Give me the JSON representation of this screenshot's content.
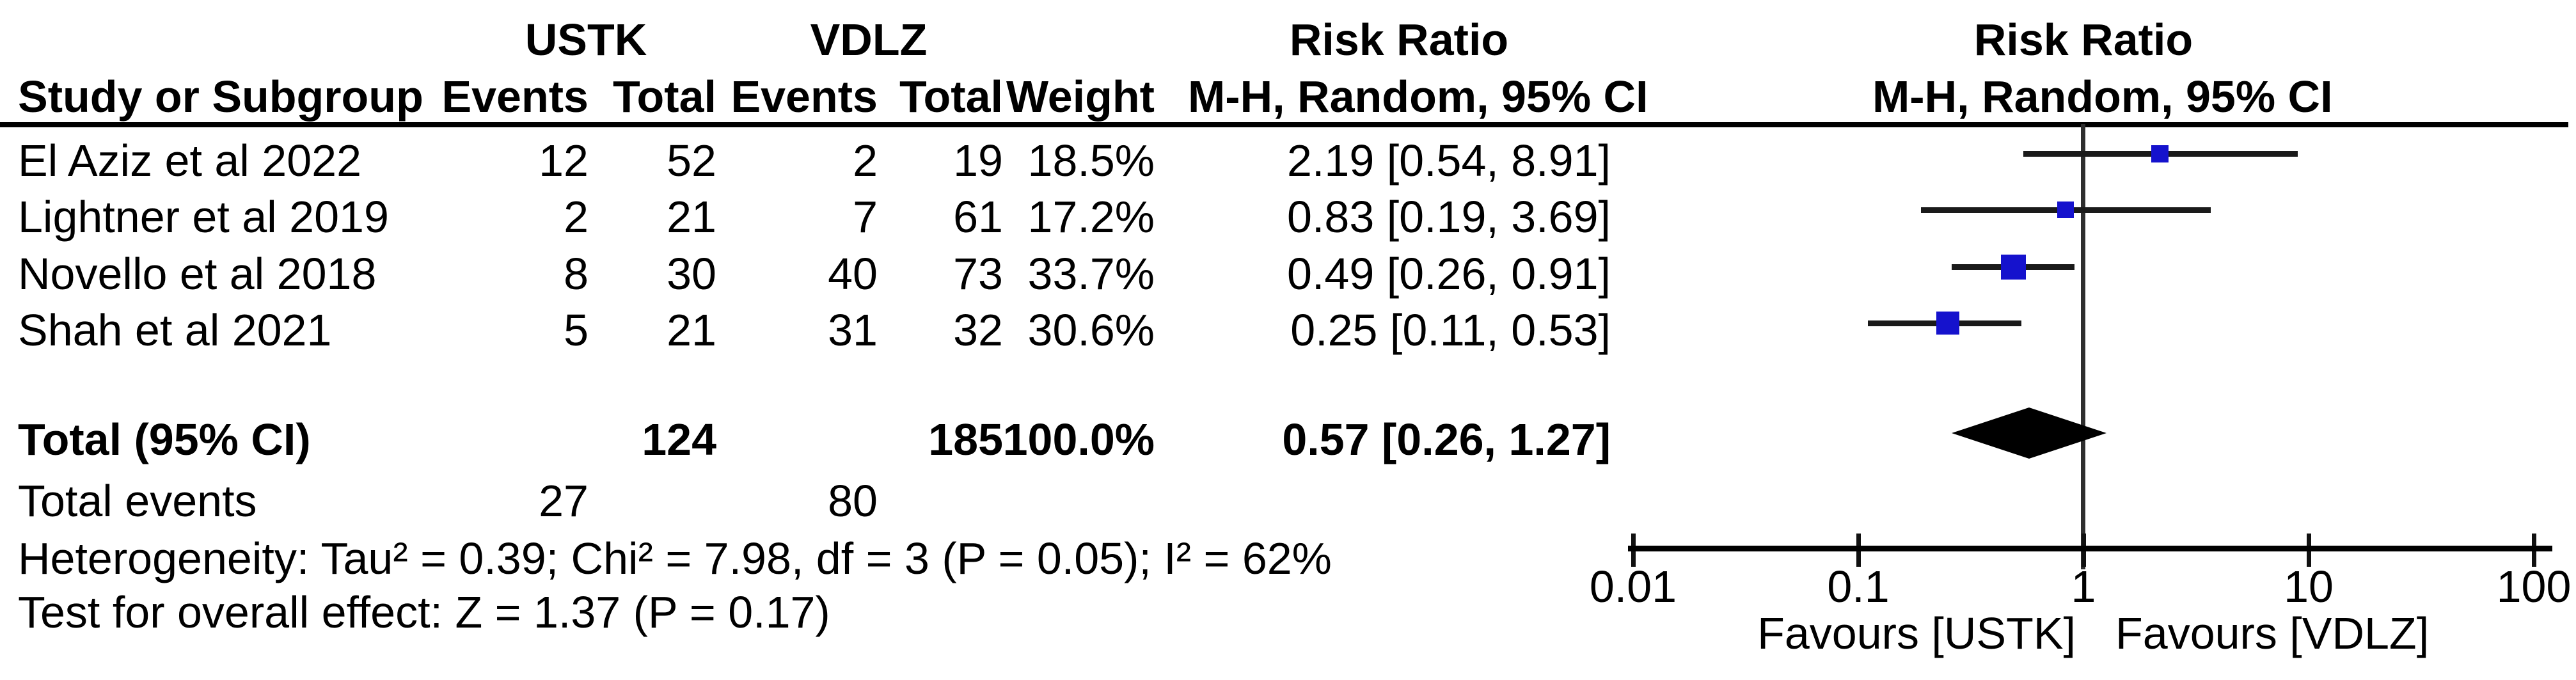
{
  "header": {
    "group1": "USTK",
    "group2": "VDLZ",
    "study_col": "Study or Subgroup",
    "events_col_1": "Events",
    "total_col_1": "Total",
    "events_col_2": "Events",
    "total_col_2": "Total",
    "weight_col": "Weight",
    "effect_line1_table": "Risk Ratio",
    "effect_line2_table": "M-H, Random, 95% CI",
    "effect_line1_plot": "Risk Ratio",
    "effect_line2_plot": "M-H, Random, 95% CI"
  },
  "chart_data": {
    "type": "forest",
    "x_scale": "log10",
    "x_range": [
      0.01,
      100
    ],
    "x_ticks": [
      0.01,
      0.1,
      1,
      10,
      100
    ],
    "x_tick_labels": [
      "0.01",
      "0.1",
      "1",
      "10",
      "100"
    ],
    "ref_line": 1,
    "marker_color": "#1512cd",
    "diamond_color": "#000000",
    "favours_left": "Favours [USTK]",
    "favours_right": "Favours [VDLZ]",
    "studies": [
      {
        "study": "El Aziz et al 2022",
        "events_1": "12",
        "total_1": "52",
        "events_2": "2",
        "total_2": "19",
        "weight": "18.5%",
        "weight_pct": 18.5,
        "rr": 2.19,
        "ci_low": 0.54,
        "ci_high": 8.91,
        "rr_text": "2.19 [0.54, 8.91]"
      },
      {
        "study": "Lightner et al 2019",
        "events_1": "2",
        "total_1": "21",
        "events_2": "7",
        "total_2": "61",
        "weight": "17.2%",
        "weight_pct": 17.2,
        "rr": 0.83,
        "ci_low": 0.19,
        "ci_high": 3.69,
        "rr_text": "0.83 [0.19, 3.69]"
      },
      {
        "study": "Novello et al 2018",
        "events_1": "8",
        "total_1": "30",
        "events_2": "40",
        "total_2": "73",
        "weight": "33.7%",
        "weight_pct": 33.7,
        "rr": 0.49,
        "ci_low": 0.26,
        "ci_high": 0.91,
        "rr_text": "0.49 [0.26, 0.91]"
      },
      {
        "study": "Shah et al 2021",
        "events_1": "5",
        "total_1": "21",
        "events_2": "31",
        "total_2": "32",
        "weight": "30.6%",
        "weight_pct": 30.6,
        "rr": 0.25,
        "ci_low": 0.11,
        "ci_high": 0.53,
        "rr_text": "0.25 [0.11, 0.53]"
      }
    ],
    "total": {
      "label": "Total (95% CI)",
      "total_1": "124",
      "total_2": "185",
      "weight": "100.0%",
      "rr": 0.57,
      "ci_low": 0.26,
      "ci_high": 1.27,
      "rr_text": "0.57 [0.26, 1.27]"
    },
    "total_events": {
      "label": "Total events",
      "events_1": "27",
      "events_2": "80"
    }
  },
  "footer": {
    "heterogeneity": "Heterogeneity: Tau² = 0.39; Chi² = 7.98, df = 3 (P = 0.05); I² = 62%",
    "overall_effect": "Test for overall effect: Z = 1.37 (P = 0.17)"
  }
}
